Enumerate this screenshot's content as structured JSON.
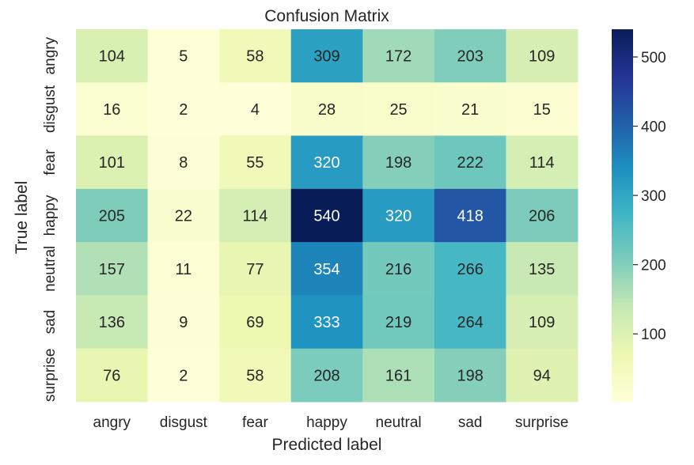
{
  "chart_data": {
    "type": "heatmap",
    "title": "Confusion Matrix",
    "xlabel": "Predicted label",
    "ylabel": "True label",
    "x_categories": [
      "angry",
      "disgust",
      "fear",
      "happy",
      "neutral",
      "sad",
      "surprise"
    ],
    "y_categories": [
      "angry",
      "disgust",
      "fear",
      "happy",
      "neutral",
      "sad",
      "surprise"
    ],
    "values": [
      [
        104,
        5,
        58,
        309,
        172,
        203,
        109
      ],
      [
        16,
        2,
        4,
        28,
        25,
        21,
        15
      ],
      [
        101,
        8,
        55,
        320,
        198,
        222,
        114
      ],
      [
        205,
        22,
        114,
        540,
        320,
        418,
        206
      ],
      [
        157,
        11,
        77,
        354,
        216,
        266,
        135
      ],
      [
        136,
        9,
        69,
        333,
        219,
        264,
        109
      ],
      [
        76,
        2,
        58,
        208,
        161,
        198,
        94
      ]
    ],
    "colormap": "YlGnBu",
    "colorscale_stops": [
      "#ffffd9",
      "#edf8b1",
      "#c7e9b4",
      "#7fcdbb",
      "#41b6c4",
      "#1d91c0",
      "#225ea8",
      "#253494",
      "#081d58"
    ],
    "color_range": [
      2,
      540
    ],
    "colorbar_ticks": [
      100,
      200,
      300,
      400,
      500
    ],
    "annotate": true
  }
}
